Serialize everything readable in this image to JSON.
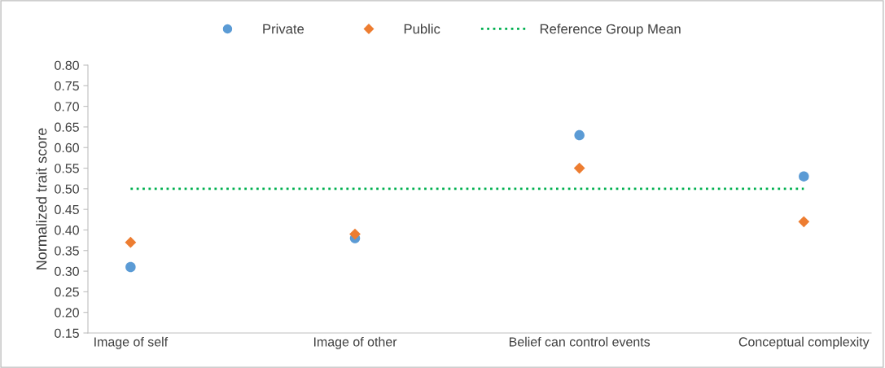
{
  "chart_data": {
    "type": "scatter",
    "ylabel": "Normalized trait score",
    "categories": [
      "Image of self",
      "Image of other",
      "Belief can control events",
      "Conceptual complexity"
    ],
    "series": [
      {
        "name": "Private",
        "color": "#5b9bd5",
        "marker": "circle",
        "values": [
          0.31,
          0.38,
          0.63,
          0.53
        ]
      },
      {
        "name": "Public",
        "color": "#ed7d31",
        "marker": "diamond",
        "values": [
          0.37,
          0.39,
          0.55,
          0.42
        ]
      },
      {
        "name": "Reference Group Mean",
        "type": "line",
        "color": "#00b050",
        "marker": "none",
        "line_style": "dotted",
        "values": [
          0.5,
          0.5,
          0.5,
          0.5
        ]
      }
    ],
    "ylim": [
      0.15,
      0.8
    ],
    "yticks": [
      {
        "value": 0.15,
        "label": "0.15"
      },
      {
        "value": 0.2,
        "label": "0.20"
      },
      {
        "value": 0.25,
        "label": "0.25"
      },
      {
        "value": 0.3,
        "label": "0.30"
      },
      {
        "value": 0.35,
        "label": "0.35"
      },
      {
        "value": 0.4,
        "label": "0.40"
      },
      {
        "value": 0.45,
        "label": "0.45"
      },
      {
        "value": 0.5,
        "label": "0.50"
      },
      {
        "value": 0.55,
        "label": "0.55"
      },
      {
        "value": 0.6,
        "label": "0.60"
      },
      {
        "value": 0.65,
        "label": "0.65"
      },
      {
        "value": 0.7,
        "label": "0.70"
      },
      {
        "value": 0.75,
        "label": "0.75"
      },
      {
        "value": 0.8,
        "label": "0.80"
      }
    ],
    "grid": false,
    "legend": "top"
  }
}
